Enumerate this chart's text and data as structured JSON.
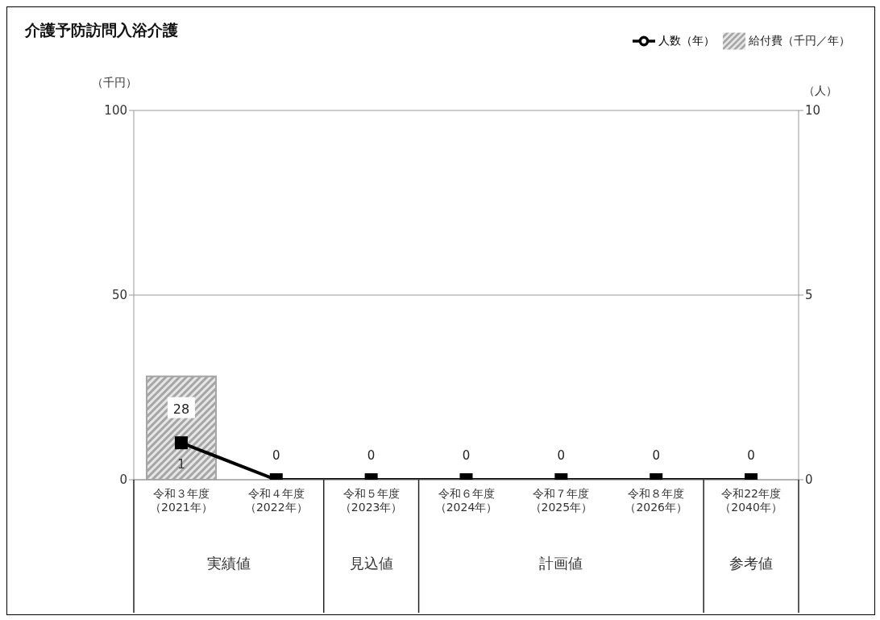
{
  "chart_data": {
    "type": "bar",
    "title": "介護予防訪問入浴介護",
    "categories": [
      "令和３年度（2021年）",
      "令和４年度（2022年）",
      "令和５年度（2023年）",
      "令和６年度（2024年）",
      "令和７年度（2025年）",
      "令和８年度（2026年）",
      "令和22年度（2040年）"
    ],
    "series": [
      {
        "name": "給付費（千円／年）",
        "color": "#a6a6a6",
        "values": [
          28,
          0,
          0,
          0,
          0,
          0,
          0
        ],
        "value_labels": [
          "28",
          "0",
          "0",
          "0",
          "0",
          "0",
          "0"
        ]
      },
      {
        "name": "人数（年）",
        "type": "line",
        "axis": "y2",
        "color": "#000000",
        "values": [
          1,
          0,
          0,
          0,
          0,
          0,
          0
        ],
        "value_labels": [
          "1",
          null,
          null,
          null,
          null,
          null,
          null
        ]
      }
    ],
    "ylabel": "（千円）",
    "y2label": "（人）",
    "ylim": [
      0,
      100
    ],
    "yticks": [
      0,
      50,
      100
    ],
    "y2lim": [
      0,
      10
    ],
    "y2ticks": [
      0,
      5,
      10
    ],
    "grid": "y",
    "legend": "top right",
    "marker": "square",
    "line_style": "solid",
    "annotations": [
      "実績値",
      "見込値",
      "計画値",
      "参考値"
    ]
  }
}
